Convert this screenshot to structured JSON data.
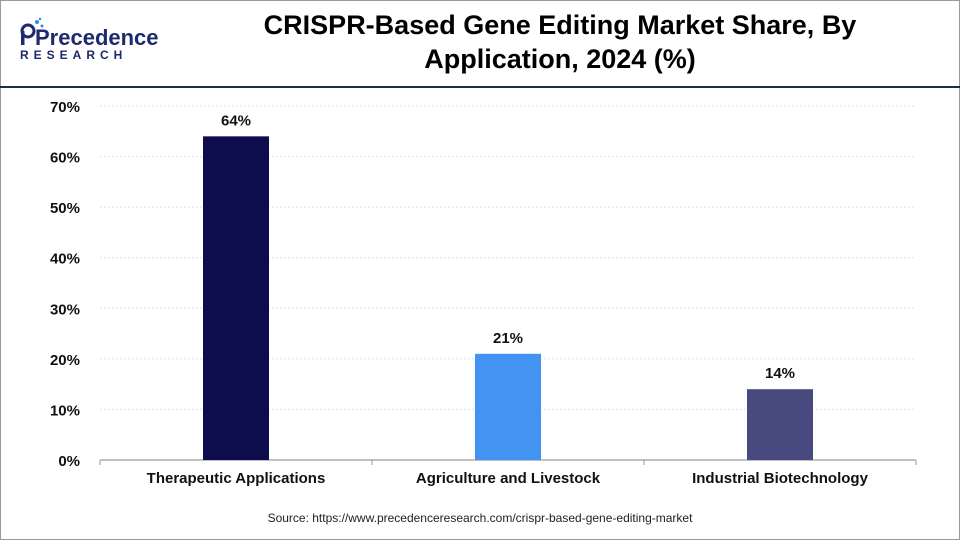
{
  "header": {
    "logo_word": "Precedence",
    "logo_sub": "RESEARCH",
    "title_line1": "CRISPR-Based Gene Editing Market Share, By",
    "title_line2": "Application, 2024 (%)"
  },
  "footer": {
    "source": "Source: https://www.precedenceresearch.com/crispr-based-gene-editing-market"
  },
  "chart_data": {
    "type": "bar",
    "title": "CRISPR-Based Gene Editing Market Share, By Application, 2024 (%)",
    "categories": [
      "Therapeutic Applications",
      "Agriculture and Livestock",
      "Industrial Biotechnology"
    ],
    "values": [
      64,
      21,
      14
    ],
    "value_labels": [
      "64%",
      "21%",
      "14%"
    ],
    "bar_colors": [
      "#0d0d4d",
      "#4293f2",
      "#47497f"
    ],
    "ylim": [
      0,
      70
    ],
    "yticks": [
      0,
      10,
      20,
      30,
      40,
      50,
      60,
      70
    ],
    "ytick_labels": [
      "0%",
      "10%",
      "20%",
      "30%",
      "40%",
      "50%",
      "60%",
      "70%"
    ],
    "grid": true,
    "legend": "none"
  }
}
